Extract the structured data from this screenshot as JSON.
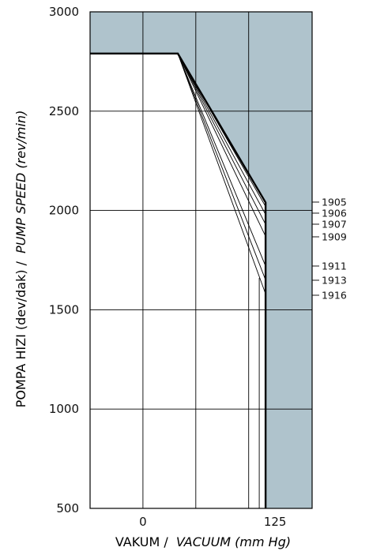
{
  "chart_data": {
    "type": "line",
    "xlabel": {
      "main": "VAKUM /",
      "italic": "VACUUM (mm Hg)"
    },
    "ylabel": {
      "main": "POMPA HIZI (dev/dak) /",
      "italic": "PUMP SPEED (rev/min)"
    },
    "xlim": [
      -50,
      160
    ],
    "ylim": [
      500,
      3000
    ],
    "x_ticks": [
      0,
      125
    ],
    "y_ticks": [
      500,
      1000,
      1500,
      2000,
      2500,
      3000
    ],
    "grid": true,
    "colors": {
      "region": "#afc3cc",
      "line": "#000000",
      "grid": "#000000",
      "background": "#ffffff"
    },
    "envelope": {
      "x": [
        -50,
        33,
        116,
        116
      ],
      "y": [
        2790,
        2790,
        2040,
        500
      ]
    },
    "series": [
      {
        "name": "1905",
        "x": [
          33,
          116
        ],
        "y": [
          2790,
          2020
        ]
      },
      {
        "name": "1906",
        "x": [
          33,
          116
        ],
        "y": [
          2790,
          1980
        ]
      },
      {
        "name": "1907",
        "x": [
          33,
          116
        ],
        "y": [
          2790,
          1930
        ]
      },
      {
        "name": "1909",
        "x": [
          33,
          116
        ],
        "y": [
          2790,
          1870
        ]
      },
      {
        "name": "1911",
        "x": [
          33,
          116
        ],
        "y": [
          2790,
          1720
        ]
      },
      {
        "name": "1913",
        "x": [
          33,
          116
        ],
        "y": [
          2790,
          1650
        ]
      },
      {
        "name": "1916",
        "x": [
          33,
          116
        ],
        "y": [
          2790,
          1580
        ]
      }
    ]
  }
}
